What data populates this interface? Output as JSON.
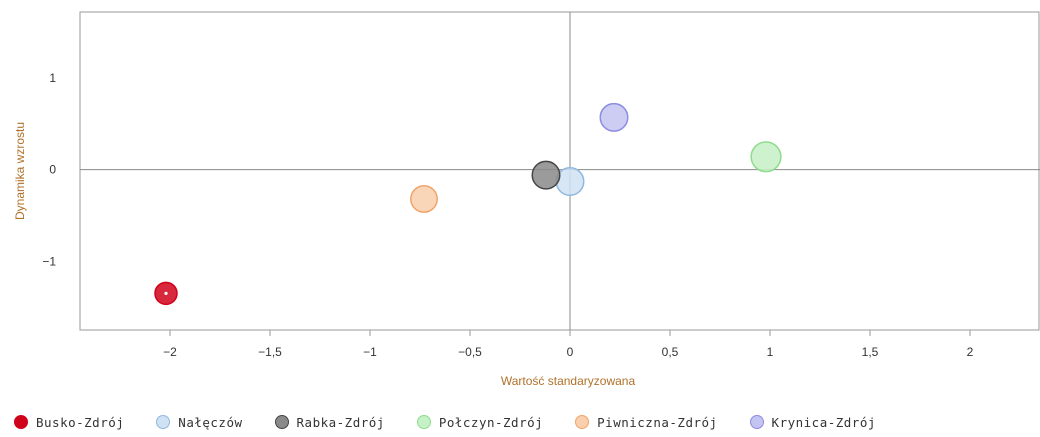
{
  "chart_data": {
    "type": "bubble",
    "title": "",
    "xlabel": "Wartość standaryzowana",
    "ylabel": "Dynamika wzrostu",
    "xlim": [
      -2.45,
      2.35
    ],
    "ylim": [
      -1.75,
      1.72
    ],
    "xticks": [
      -2,
      -1.5,
      -1,
      -0.5,
      0,
      0.5,
      1,
      1.5,
      2
    ],
    "xtick_labels": [
      "−2",
      "−1,5",
      "−1",
      "−0,5",
      "0",
      "0,5",
      "1",
      "1,5",
      "2"
    ],
    "yticks": [
      1,
      0,
      -1
    ],
    "ytick_labels": [
      "1",
      "0",
      "−1"
    ],
    "grid": false,
    "legend_position": "bottom",
    "series": [
      {
        "name": "Busko-Zdrój",
        "x": -2.02,
        "y": -1.35,
        "size": 1.0,
        "color": "#d0021b",
        "fill": "#d0021b",
        "dot": true
      },
      {
        "name": "Nałęczów",
        "x": 0.0,
        "y": -0.13,
        "size": 1.25,
        "color": "#8fb8de",
        "fill": "#cfe2f3"
      },
      {
        "name": "Rabka-Zdrój",
        "x": -0.12,
        "y": -0.06,
        "size": 1.25,
        "color": "#444444",
        "fill": "#8a8a8a"
      },
      {
        "name": "Połczyn-Zdrój",
        "x": 0.98,
        "y": 0.14,
        "size": 1.35,
        "color": "#8edc8e",
        "fill": "#c6f0c6"
      },
      {
        "name": "Piwniczna-Zdrój",
        "x": -0.73,
        "y": -0.32,
        "size": 1.2,
        "color": "#f0a46a",
        "fill": "#f9cfad"
      },
      {
        "name": "Krynica-Zdrój",
        "x": 0.22,
        "y": 0.57,
        "size": 1.25,
        "color": "#8c8ce0",
        "fill": "#c4c4f2"
      }
    ]
  }
}
